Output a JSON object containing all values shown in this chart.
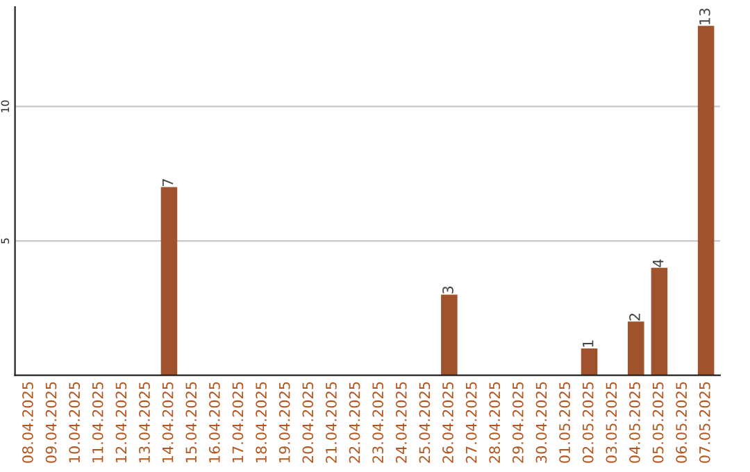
{
  "chart_data": {
    "type": "bar",
    "categories": [
      "08.04.2025",
      "09.04.2025",
      "10.04.2025",
      "11.04.2025",
      "12.04.2025",
      "13.04.2025",
      "14.04.2025",
      "15.04.2025",
      "16.04.2025",
      "17.04.2025",
      "18.04.2025",
      "19.04.2025",
      "20.04.2025",
      "21.04.2025",
      "22.04.2025",
      "23.04.2025",
      "24.04.2025",
      "25.04.2025",
      "26.04.2025",
      "27.04.2025",
      "28.04.2025",
      "29.04.2025",
      "30.04.2025",
      "01.05.2025",
      "02.05.2025",
      "03.05.2025",
      "04.05.2025",
      "05.05.2025",
      "06.05.2025",
      "07.05.2025"
    ],
    "values": [
      0,
      0,
      0,
      0,
      0,
      0,
      7,
      0,
      0,
      0,
      0,
      0,
      0,
      0,
      0,
      0,
      0,
      0,
      3,
      0,
      0,
      0,
      0,
      0,
      1,
      0,
      2,
      4,
      0,
      13
    ],
    "value_labels": [
      null,
      null,
      null,
      null,
      null,
      null,
      "7",
      null,
      null,
      null,
      null,
      null,
      null,
      null,
      null,
      null,
      null,
      null,
      "3",
      null,
      null,
      null,
      null,
      null,
      "1",
      null,
      "2",
      "4",
      null,
      "13"
    ],
    "color": "#a0522d",
    "ylim": [
      0,
      13.7
    ],
    "yticks": [
      5,
      10
    ],
    "grid": "y"
  }
}
